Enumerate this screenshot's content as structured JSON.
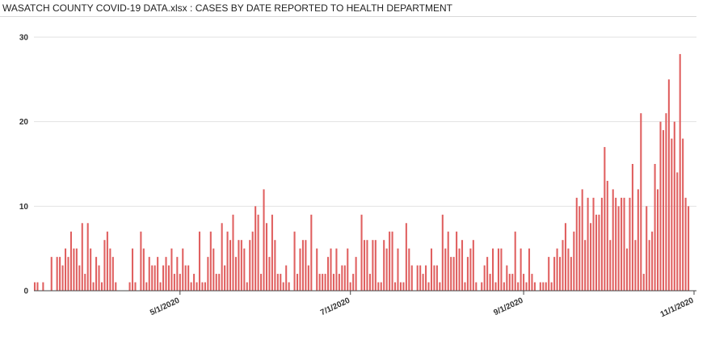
{
  "title": "WASATCH COUNTY COVID-19 DATA.xlsx : CASES BY DATE REPORTED TO HEALTH DEPARTMENT",
  "chart_data": {
    "type": "bar",
    "title": "WASATCH COUNTY COVID-19 DATA.xlsx : CASES BY DATE REPORTED TO HEALTH DEPARTMENT",
    "xlabel": "",
    "ylabel": "",
    "ylim": [
      0,
      30
    ],
    "yticks": [
      0,
      10,
      20,
      30
    ],
    "x_start_date": "2020-03-10",
    "x_end_date": "2020-11-01",
    "xticks": [
      "5/1/2020",
      "7/1/2020",
      "9/1/2020",
      "11/1/2020"
    ],
    "bar_color": "#e06060",
    "grid": true,
    "values": [
      1,
      1,
      0,
      1,
      0,
      0,
      4,
      0,
      4,
      4,
      3,
      5,
      4,
      7,
      5,
      5,
      3,
      8,
      2,
      8,
      5,
      1,
      4,
      3,
      1,
      6,
      7,
      5,
      4,
      1,
      0,
      0,
      0,
      0,
      1,
      5,
      1,
      0,
      7,
      5,
      1,
      4,
      3,
      3,
      4,
      1,
      3,
      4,
      3,
      5,
      2,
      4,
      2,
      5,
      3,
      3,
      1,
      2,
      1,
      7,
      1,
      1,
      4,
      7,
      5,
      2,
      2,
      8,
      3,
      7,
      6,
      9,
      4,
      6,
      6,
      5,
      1,
      6,
      7,
      10,
      9,
      2,
      12,
      8,
      4,
      9,
      6,
      2,
      2,
      1,
      3,
      1,
      0,
      7,
      2,
      5,
      6,
      6,
      3,
      9,
      0,
      5,
      2,
      2,
      2,
      4,
      5,
      2,
      5,
      2,
      3,
      3,
      5,
      1,
      2,
      4,
      0,
      9,
      6,
      6,
      2,
      6,
      6,
      1,
      1,
      6,
      5,
      7,
      7,
      1,
      5,
      1,
      1,
      8,
      5,
      3,
      0,
      3,
      3,
      2,
      3,
      1,
      5,
      3,
      3,
      1,
      9,
      5,
      7,
      4,
      4,
      7,
      5,
      6,
      1,
      4,
      5,
      6,
      1,
      0,
      1,
      3,
      4,
      2,
      5,
      1,
      5,
      5,
      1,
      3,
      2,
      2,
      7,
      1,
      5,
      2,
      1,
      5,
      2,
      1,
      0,
      1,
      1,
      1,
      4,
      1,
      4,
      5,
      4,
      6,
      8,
      5,
      4,
      7,
      11,
      10,
      12,
      6,
      11,
      8,
      11,
      9,
      9,
      11,
      17,
      13,
      6,
      12,
      11,
      10,
      11,
      11,
      5,
      11,
      15,
      6,
      12,
      21,
      2,
      10,
      6,
      7,
      15,
      12,
      20,
      19,
      21,
      25,
      18,
      20,
      14,
      28,
      18,
      11,
      10
    ]
  }
}
